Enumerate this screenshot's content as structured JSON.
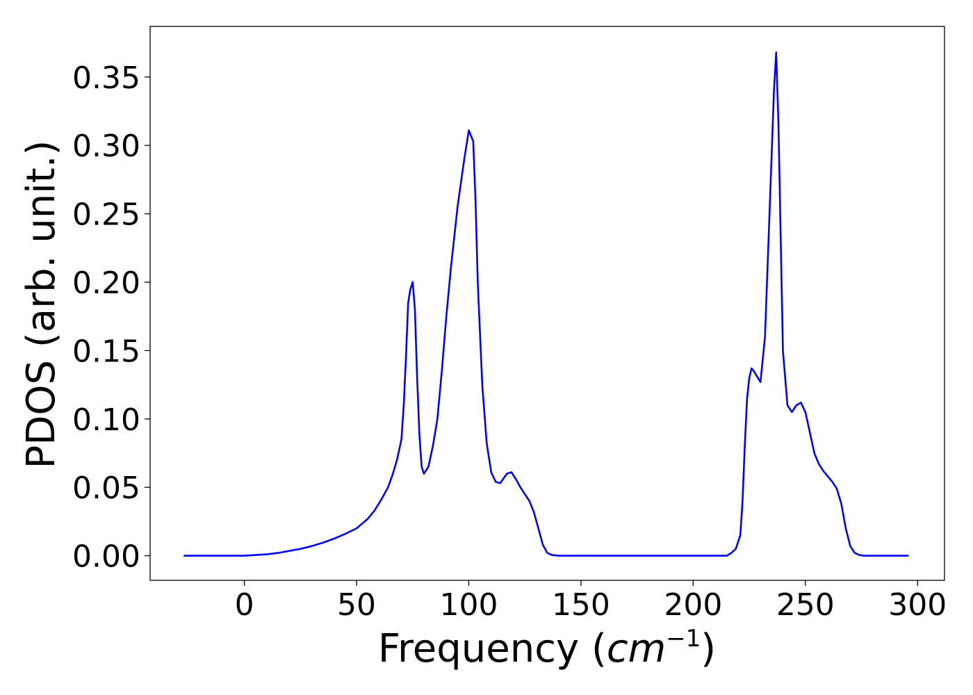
{
  "chart_data": {
    "type": "line",
    "title": "",
    "xlabel": "Frequency (",
    "xlabel_var": "cm",
    "xlabel_sup": "−1",
    "xlabel_close": ")",
    "ylabel": "PDOS (arb. unit.)",
    "xlim": [
      -42,
      312
    ],
    "ylim": [
      -0.018,
      0.387
    ],
    "grid": false,
    "legend": "none",
    "xticks": [
      0,
      50,
      100,
      150,
      200,
      250,
      300
    ],
    "xtick_labels": [
      "0",
      "50",
      "100",
      "150",
      "200",
      "250",
      "300"
    ],
    "yticks": [
      0.0,
      0.05,
      0.1,
      0.15,
      0.2,
      0.25,
      0.3,
      0.35
    ],
    "ytick_labels": [
      "0.00",
      "0.05",
      "0.10",
      "0.15",
      "0.20",
      "0.25",
      "0.30",
      "0.35"
    ],
    "series": [
      {
        "color": "#0000ff",
        "x": [
          -27,
          0,
          5,
          10,
          15,
          20,
          25,
          30,
          35,
          40,
          45,
          50,
          55,
          58,
          61,
          64,
          66,
          68,
          70,
          71,
          72,
          73,
          74,
          75,
          76,
          77,
          78,
          79,
          80,
          82,
          84,
          86,
          88,
          90,
          92,
          95,
          98,
          100,
          102,
          103,
          104,
          106,
          108,
          110,
          112,
          114,
          117,
          119,
          121,
          123,
          125,
          127,
          129,
          131,
          133,
          135,
          137,
          140,
          150,
          200,
          215,
          217,
          219,
          221,
          222,
          223,
          224,
          225,
          226,
          227,
          230,
          232,
          234,
          236,
          237,
          238,
          240,
          242,
          244,
          246,
          248,
          250,
          252,
          254,
          256,
          258,
          260,
          262,
          264,
          266,
          268,
          270,
          272,
          274,
          276,
          280,
          296
        ],
        "y": [
          0.0,
          0.0,
          0.0005,
          0.001,
          0.002,
          0.0035,
          0.005,
          0.007,
          0.0095,
          0.0125,
          0.016,
          0.02,
          0.027,
          0.033,
          0.041,
          0.05,
          0.059,
          0.07,
          0.085,
          0.11,
          0.145,
          0.185,
          0.195,
          0.2,
          0.18,
          0.13,
          0.088,
          0.065,
          0.06,
          0.065,
          0.08,
          0.1,
          0.135,
          0.175,
          0.21,
          0.255,
          0.29,
          0.311,
          0.303,
          0.26,
          0.2,
          0.125,
          0.082,
          0.061,
          0.054,
          0.053,
          0.06,
          0.061,
          0.056,
          0.05,
          0.045,
          0.04,
          0.032,
          0.02,
          0.008,
          0.002,
          0.0005,
          0.0,
          0.0,
          0.0,
          0.0,
          0.002,
          0.005,
          0.015,
          0.04,
          0.08,
          0.115,
          0.13,
          0.137,
          0.135,
          0.127,
          0.16,
          0.25,
          0.34,
          0.368,
          0.315,
          0.15,
          0.11,
          0.105,
          0.11,
          0.112,
          0.105,
          0.09,
          0.075,
          0.067,
          0.062,
          0.058,
          0.054,
          0.049,
          0.038,
          0.02,
          0.007,
          0.002,
          0.0005,
          0.0,
          0.0,
          0.0
        ]
      }
    ]
  }
}
